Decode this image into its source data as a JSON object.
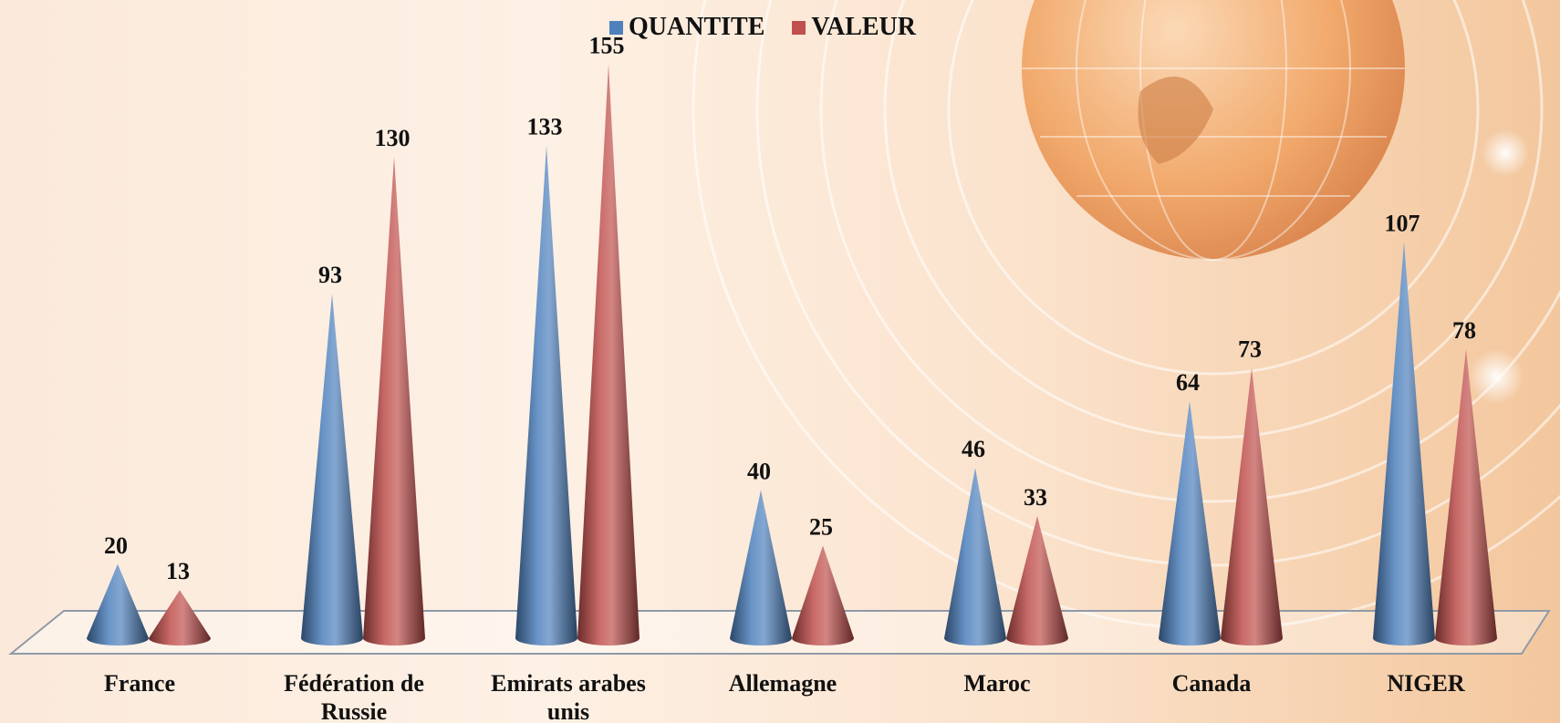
{
  "chart_data": {
    "type": "bar",
    "subtype": "3d-cone",
    "categories": [
      "France",
      "Fédération de Russie",
      "Emirats arabes unis",
      "Allemagne",
      "Maroc",
      "Canada",
      "NIGER"
    ],
    "series": [
      {
        "name": "QUANTITE",
        "values": [
          20,
          93,
          133,
          40,
          46,
          64,
          107
        ],
        "color": "#4f81bd"
      },
      {
        "name": "VALEUR",
        "values": [
          13,
          130,
          155,
          25,
          33,
          73,
          78
        ],
        "color": "#c0504d"
      }
    ],
    "title": "",
    "xlabel": "",
    "ylabel": "",
    "ylim": [
      0,
      160
    ],
    "grid": false,
    "legend": "top-center",
    "data_labels": true
  }
}
